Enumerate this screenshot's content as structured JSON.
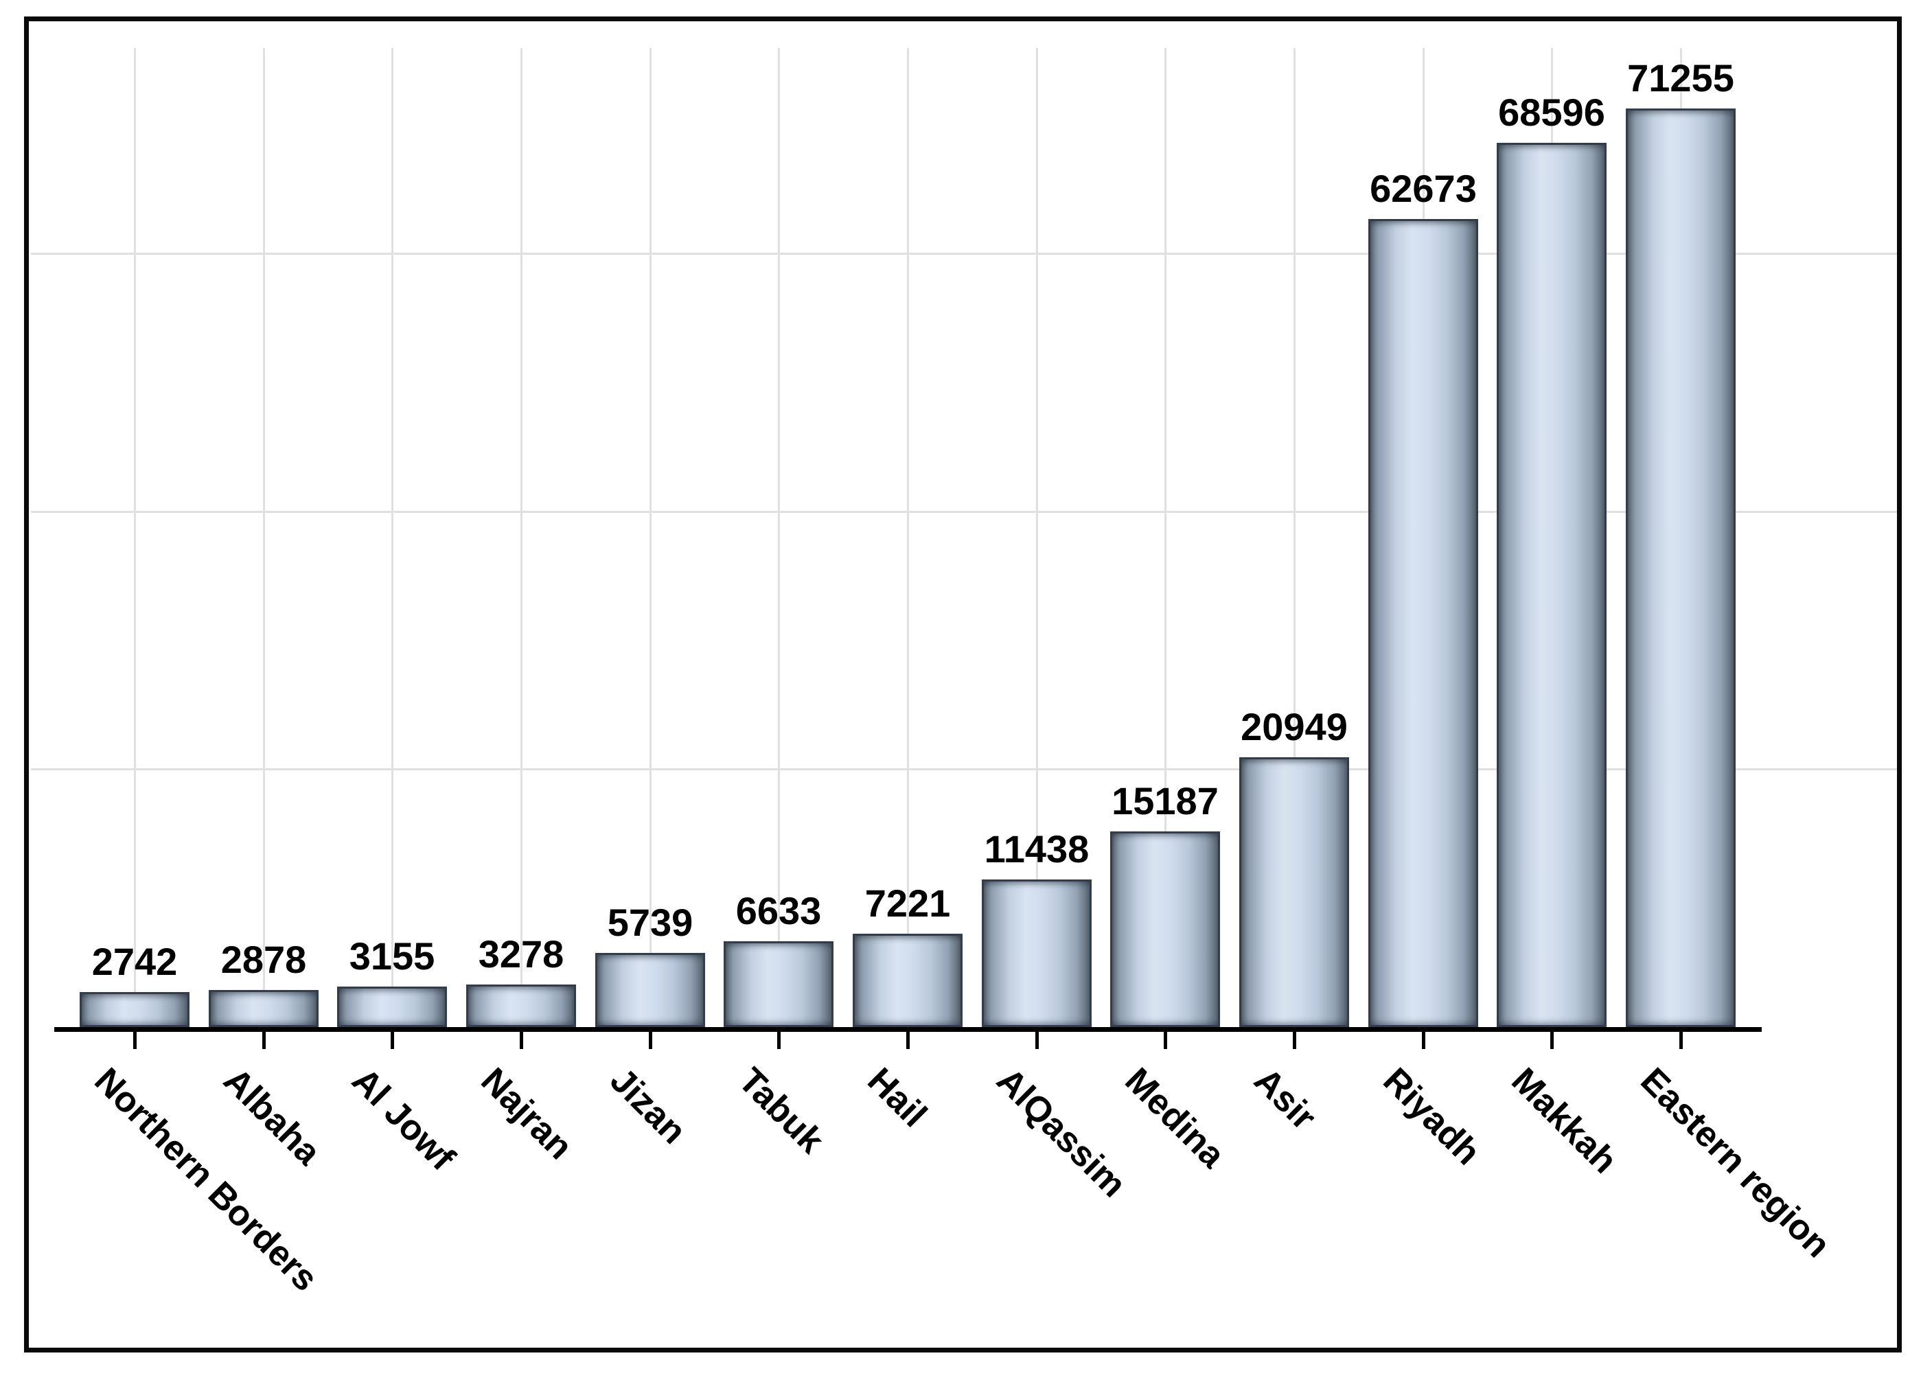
{
  "chart_data": {
    "type": "bar",
    "title": "",
    "xlabel": "",
    "ylabel": "",
    "categories": [
      "Northern Borders",
      "Albaha",
      "Al Jowf",
      "Najran",
      "Jizan",
      "Tabuk",
      "Hail",
      "AlQassim",
      "Medina",
      "Asir",
      "Riyadh",
      "Makkah",
      "Eastern region"
    ],
    "values": [
      2742,
      2878,
      3155,
      3278,
      5739,
      6633,
      7221,
      11438,
      15187,
      20949,
      62673,
      68596,
      71255
    ],
    "value_labels": [
      "2742",
      "2878",
      "3155",
      "3278",
      "5739",
      "6633",
      "7221",
      "11438",
      "15187",
      "20949",
      "62673",
      "68596",
      "71255"
    ],
    "ylim": [
      0,
      75000
    ],
    "y_gridline_values": [
      20000,
      40000,
      60000
    ],
    "y_axis_tick_labels_visible": false,
    "grid": "horizontal value gridlines + vertical gridlines at category centers",
    "legend": "none",
    "x_tick_label_rotation_deg": -45,
    "colors": {
      "bar_fill_light": "#dae4f1",
      "bar_fill_mid": "#c3d2e3",
      "bar_fill_dark": "#57636f",
      "bar_border": "#333d49",
      "axis": "#000000",
      "gridline": "#e0e0e0",
      "frame": "#0a0a0a",
      "text": "#000000",
      "background": "#ffffff"
    }
  }
}
